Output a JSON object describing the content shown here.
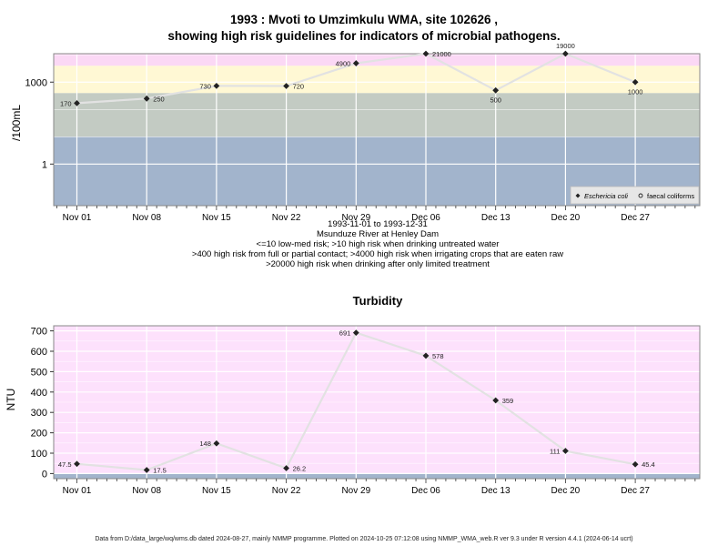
{
  "top": {
    "title_line1": "1993 : Mvoti to Umzimkulu WMA, site 102626 ,",
    "title_line2": "showing high risk guidelines for indicators of microbial pathogens.",
    "ylabel": "/100mL",
    "subtitle": [
      "1993-11-01 to 1993-12-31",
      "Msunduze River at Henley Dam",
      "<=10 low-med risk; >10 high risk when drinking untreated water",
      ">400 high risk from full or partial contact; >4000 high risk when irrigating crops that are eaten raw",
      ">20000 high risk when drinking after only limited treatment"
    ],
    "legend": {
      "ecoli": "Eschericia coli",
      "fc": "faecal coliforms"
    }
  },
  "bottom": {
    "title": "Turbidity",
    "ylabel": "NTU"
  },
  "footer": "Data from D:/data_large/wq/wms.db dated 2024-08-27, mainly NMMP programme. Plotted on 2024-10-25 07:12:08 using NMMP_WMA_web.R ver 9.3 under R version 4.4.1 (2024-06-14 ucrt)",
  "chart_data": [
    {
      "type": "line",
      "scale": "log10",
      "ylim": [
        0.03,
        11000
      ],
      "yticks": [
        1,
        1000
      ],
      "categories": [
        "Nov 01",
        "Nov 08",
        "Nov 15",
        "Nov 22",
        "Nov 29",
        "Dec 06",
        "Dec 13",
        "Dec 20",
        "Dec 27"
      ],
      "series": [
        {
          "name": "Eschericia coli",
          "values": [
            170,
            250,
            730,
            720,
            4900,
            21000,
            500,
            19000,
            1000
          ],
          "labels": [
            "170",
            "250",
            "730",
            "720",
            "4900",
            "21000",
            "500",
            "19000",
            "1000"
          ]
        }
      ],
      "bands": [
        {
          "from": 0.03,
          "to": 10,
          "color": "#a2b4cc"
        },
        {
          "from": 10,
          "to": 400,
          "color": "#c3cbc3"
        },
        {
          "from": 400,
          "to": 4000,
          "color": "#fff8d4"
        },
        {
          "from": 4000,
          "to": 20000,
          "color": "#fbd8f5"
        },
        {
          "from": 20000,
          "to": 11000,
          "color": "#f7b8c3"
        }
      ]
    },
    {
      "type": "line",
      "title": "Turbidity",
      "ylabel": "NTU",
      "ylim": [
        -25,
        725
      ],
      "yticks": [
        0,
        100,
        200,
        300,
        400,
        500,
        600,
        700
      ],
      "categories": [
        "Nov 01",
        "Nov 08",
        "Nov 15",
        "Nov 22",
        "Nov 29",
        "Dec 06",
        "Dec 13",
        "Dec 20",
        "Dec 27"
      ],
      "series": [
        {
          "name": "Turbidity",
          "values": [
            47.5,
            17.5,
            148,
            26.2,
            691,
            578,
            359,
            111,
            45.4
          ],
          "labels": [
            "47.5",
            "17.5",
            "148",
            "26.2",
            "691",
            "578",
            "359",
            "111",
            "45.4"
          ]
        }
      ],
      "bands": [
        {
          "from": -25,
          "to": 0,
          "color": "#a2b4cc"
        },
        {
          "from": 0,
          "to": 725,
          "color": "#fde1fc"
        }
      ]
    }
  ]
}
